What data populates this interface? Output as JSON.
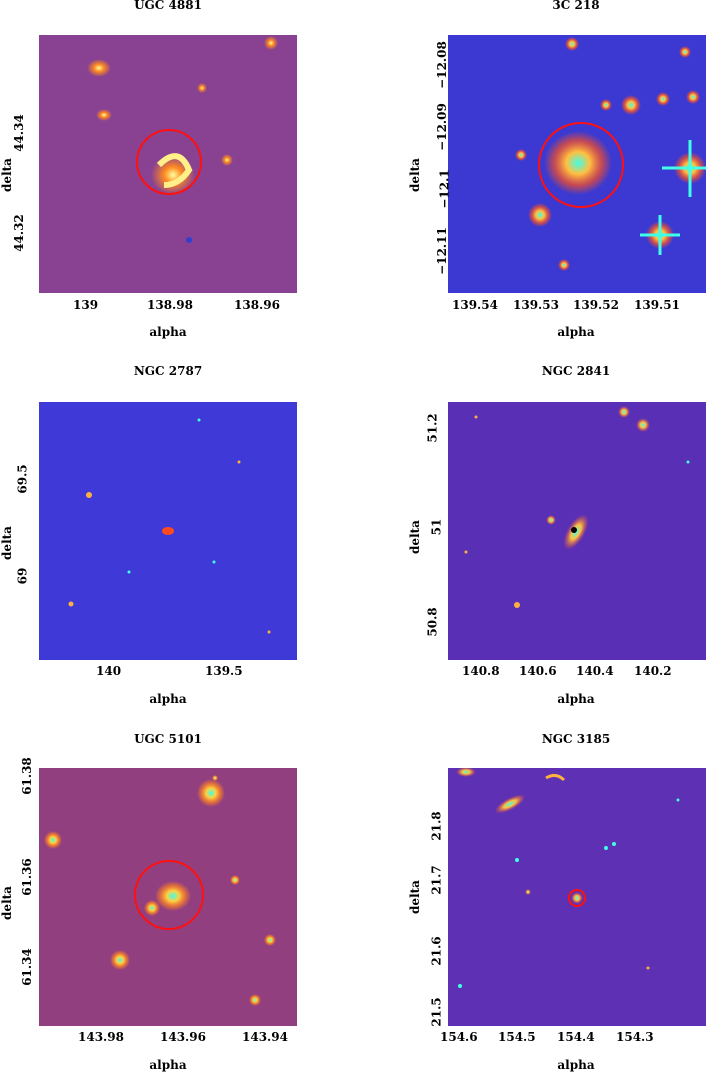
{
  "panels": [
    {
      "title": "UGC 4881",
      "xlabel": "alpha",
      "ylabel": "delta",
      "xticks": [
        "139",
        "138.98",
        "138.96"
      ],
      "yticks": [
        "44.34",
        "44.32"
      ],
      "bg": "#7b3aa0",
      "palette": "warm",
      "circle": true
    },
    {
      "title": "3C 218",
      "xlabel": "alpha",
      "ylabel": "delta",
      "xticks": [
        "139.54",
        "139.53",
        "139.52",
        "139.51"
      ],
      "yticks": [
        "−12.08",
        "−12.09",
        "−12.1",
        "−12.11"
      ],
      "bg": "#2b39d6",
      "palette": "cool",
      "circle": true
    },
    {
      "title": "NGC 2787",
      "xlabel": "alpha",
      "ylabel": "delta",
      "xticks": [
        "140",
        "139.5"
      ],
      "yticks": [
        "69.5",
        "69"
      ],
      "bg": "#4a30d0",
      "palette": "cool",
      "circle": false
    },
    {
      "title": "NGC 2841",
      "xlabel": "alpha",
      "ylabel": "delta",
      "xticks": [
        "140.8",
        "140.6",
        "140.4",
        "140.2"
      ],
      "yticks": [
        "51.2",
        "51",
        "50.8"
      ],
      "bg": "#6a2aa8",
      "palette": "cool",
      "circle": false
    },
    {
      "title": "UGC 5101",
      "xlabel": "alpha",
      "ylabel": "delta",
      "xticks": [
        "143.98",
        "143.96",
        "143.94"
      ],
      "yticks": [
        "61.38",
        "61.36",
        "61.34"
      ],
      "bg": "#8a3a8c",
      "palette": "warm",
      "circle": true
    },
    {
      "title": "NGC 3185",
      "xlabel": "alpha",
      "ylabel": "delta",
      "xticks": [
        "154.6",
        "154.5",
        "154.4",
        "154.3"
      ],
      "yticks": [
        "21.8",
        "21.7",
        "21.6",
        "21.5"
      ],
      "bg": "#6a2aa8",
      "palette": "cool",
      "circle": false
    }
  ]
}
